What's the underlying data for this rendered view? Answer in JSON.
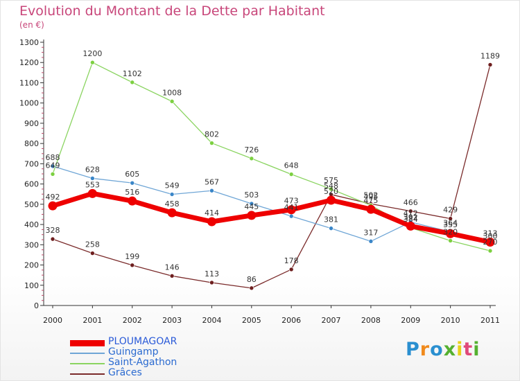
{
  "title": "Evolution du Montant de la Dette par Habitant",
  "unit": "(en €)",
  "logo": {
    "text": "Proxiti",
    "letter_colors": [
      "#2a8fd0",
      "#f08a1c",
      "#2a8fd0",
      "#55b030",
      "#e8d21a",
      "#e04a7a",
      "#55b030"
    ]
  },
  "chart_data": {
    "type": "line",
    "title": "Evolution du Montant de la Dette par Habitant",
    "ylabel": "(en €)",
    "xlabel": "",
    "categories": [
      "2000",
      "2001",
      "2002",
      "2003",
      "2004",
      "2005",
      "2006",
      "2007",
      "2008",
      "2009",
      "2010",
      "2011"
    ],
    "ylim": [
      0,
      1300
    ],
    "yticks": [
      0,
      100,
      200,
      300,
      400,
      500,
      600,
      700,
      800,
      900,
      1000,
      1100,
      1200,
      1300
    ],
    "grid": false,
    "legend": "bottom-left",
    "series": [
      {
        "name": "Grâces",
        "color": "#7a2a2a",
        "marker_color": "#6e1f1f",
        "emphasis": false,
        "values": [
          328,
          258,
          199,
          146,
          113,
          86,
          178,
          548,
          502,
          466,
          429,
          1189
        ]
      },
      {
        "name": "Saint-Agathon",
        "color": "#8ad460",
        "marker_color": "#7cd040",
        "emphasis": false,
        "values": [
          649,
          1200,
          1102,
          1008,
          802,
          726,
          648,
          575,
          495,
          384,
          320,
          270
        ]
      },
      {
        "name": "Guingamp",
        "color": "#6fa6d6",
        "marker_color": "#3a86c8",
        "emphasis": false,
        "values": [
          688,
          628,
          605,
          549,
          567,
          503,
          441,
          381,
          317,
          412,
          364,
          300
        ]
      },
      {
        "name": "PLOUMAGOAR",
        "color": "#ee0000",
        "marker_color": "#ee0000",
        "emphasis": true,
        "values": [
          492,
          553,
          516,
          458,
          414,
          445,
          473,
          520,
          475,
          392,
          355,
          313
        ]
      }
    ],
    "legend_order": [
      "PLOUMAGOAR",
      "Guingamp",
      "Saint-Agathon",
      "Grâces"
    ]
  }
}
